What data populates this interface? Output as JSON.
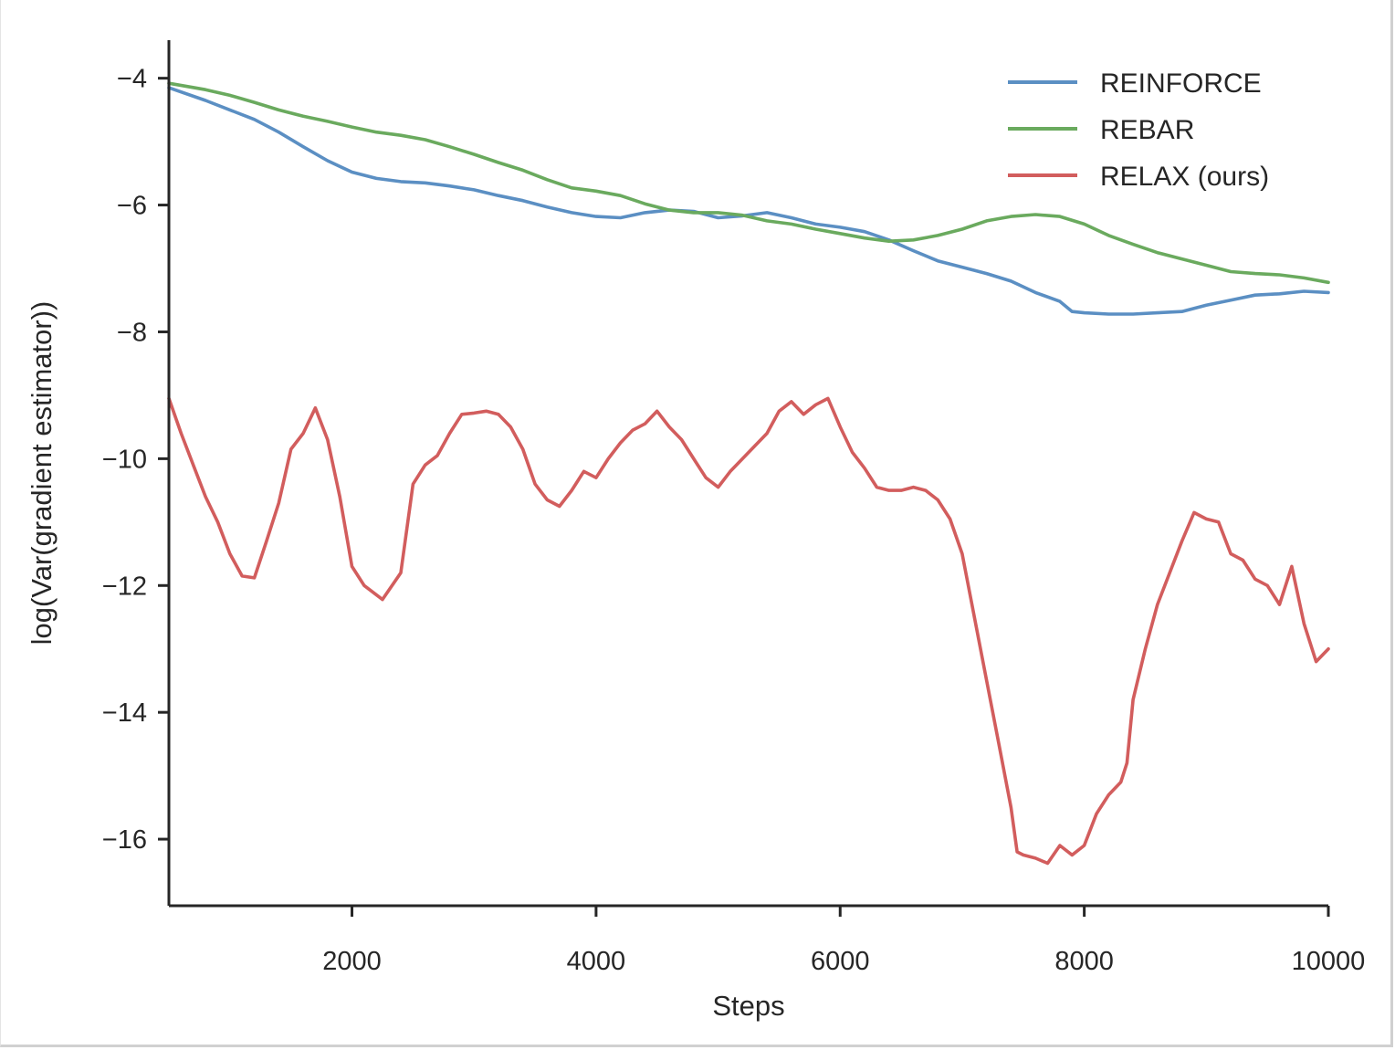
{
  "chart_data": {
    "type": "line",
    "title": "",
    "xlabel": "Steps",
    "ylabel": "log(Var(gradient estimator))",
    "xlim": [
      500,
      10000
    ],
    "ylim": [
      -17.05,
      -3.4
    ],
    "x_ticks": [
      2000,
      4000,
      6000,
      8000,
      10000
    ],
    "y_ticks": [
      -4,
      -6,
      -8,
      -10,
      -12,
      -14,
      -16
    ],
    "x_tick_labels": [
      "2000",
      "4000",
      "6000",
      "8000",
      "10000"
    ],
    "y_tick_labels": [
      "−4",
      "−6",
      "−8",
      "−10",
      "−12",
      "−14",
      "−16"
    ],
    "grid": false,
    "legend_position": "top-right",
    "series": [
      {
        "name": "REINFORCE",
        "color": "#5b8fc3",
        "points": [
          [
            500,
            -4.15
          ],
          [
            800,
            -4.35
          ],
          [
            1000,
            -4.5
          ],
          [
            1200,
            -4.65
          ],
          [
            1400,
            -4.85
          ],
          [
            1600,
            -5.08
          ],
          [
            1800,
            -5.3
          ],
          [
            2000,
            -5.48
          ],
          [
            2200,
            -5.58
          ],
          [
            2400,
            -5.63
          ],
          [
            2600,
            -5.65
          ],
          [
            2800,
            -5.7
          ],
          [
            3000,
            -5.76
          ],
          [
            3200,
            -5.85
          ],
          [
            3400,
            -5.93
          ],
          [
            3600,
            -6.03
          ],
          [
            3800,
            -6.12
          ],
          [
            4000,
            -6.18
          ],
          [
            4200,
            -6.2
          ],
          [
            4400,
            -6.12
          ],
          [
            4600,
            -6.08
          ],
          [
            4800,
            -6.1
          ],
          [
            5000,
            -6.2
          ],
          [
            5200,
            -6.17
          ],
          [
            5400,
            -6.12
          ],
          [
            5600,
            -6.2
          ],
          [
            5800,
            -6.3
          ],
          [
            6000,
            -6.35
          ],
          [
            6200,
            -6.42
          ],
          [
            6400,
            -6.55
          ],
          [
            6600,
            -6.72
          ],
          [
            6800,
            -6.88
          ],
          [
            7000,
            -6.98
          ],
          [
            7200,
            -7.08
          ],
          [
            7400,
            -7.2
          ],
          [
            7600,
            -7.38
          ],
          [
            7800,
            -7.52
          ],
          [
            7900,
            -7.68
          ],
          [
            8000,
            -7.7
          ],
          [
            8200,
            -7.72
          ],
          [
            8400,
            -7.72
          ],
          [
            8600,
            -7.7
          ],
          [
            8800,
            -7.68
          ],
          [
            9000,
            -7.58
          ],
          [
            9200,
            -7.5
          ],
          [
            9400,
            -7.42
          ],
          [
            9600,
            -7.4
          ],
          [
            9800,
            -7.36
          ],
          [
            10000,
            -7.38
          ]
        ]
      },
      {
        "name": "REBAR",
        "color": "#6aaa5e",
        "points": [
          [
            500,
            -4.08
          ],
          [
            800,
            -4.18
          ],
          [
            1000,
            -4.27
          ],
          [
            1200,
            -4.38
          ],
          [
            1400,
            -4.5
          ],
          [
            1600,
            -4.6
          ],
          [
            1800,
            -4.68
          ],
          [
            2000,
            -4.77
          ],
          [
            2200,
            -4.85
          ],
          [
            2400,
            -4.9
          ],
          [
            2600,
            -4.97
          ],
          [
            2800,
            -5.08
          ],
          [
            3000,
            -5.2
          ],
          [
            3200,
            -5.33
          ],
          [
            3400,
            -5.45
          ],
          [
            3600,
            -5.6
          ],
          [
            3800,
            -5.73
          ],
          [
            4000,
            -5.78
          ],
          [
            4200,
            -5.85
          ],
          [
            4400,
            -5.98
          ],
          [
            4600,
            -6.08
          ],
          [
            4800,
            -6.12
          ],
          [
            5000,
            -6.12
          ],
          [
            5200,
            -6.16
          ],
          [
            5400,
            -6.25
          ],
          [
            5600,
            -6.3
          ],
          [
            5800,
            -6.38
          ],
          [
            6000,
            -6.45
          ],
          [
            6200,
            -6.52
          ],
          [
            6400,
            -6.57
          ],
          [
            6600,
            -6.55
          ],
          [
            6800,
            -6.48
          ],
          [
            7000,
            -6.38
          ],
          [
            7200,
            -6.25
          ],
          [
            7400,
            -6.18
          ],
          [
            7600,
            -6.15
          ],
          [
            7800,
            -6.18
          ],
          [
            8000,
            -6.3
          ],
          [
            8200,
            -6.48
          ],
          [
            8400,
            -6.62
          ],
          [
            8600,
            -6.75
          ],
          [
            8800,
            -6.85
          ],
          [
            9000,
            -6.95
          ],
          [
            9200,
            -7.05
          ],
          [
            9400,
            -7.08
          ],
          [
            9600,
            -7.1
          ],
          [
            9800,
            -7.15
          ],
          [
            10000,
            -7.22
          ]
        ]
      },
      {
        "name": "RELAX (ours)",
        "color": "#d25d5d",
        "points": [
          [
            500,
            -9.05
          ],
          [
            600,
            -9.6
          ],
          [
            700,
            -10.1
          ],
          [
            800,
            -10.6
          ],
          [
            900,
            -11.0
          ],
          [
            1000,
            -11.5
          ],
          [
            1100,
            -11.85
          ],
          [
            1200,
            -11.88
          ],
          [
            1300,
            -11.3
          ],
          [
            1400,
            -10.7
          ],
          [
            1500,
            -9.85
          ],
          [
            1600,
            -9.6
          ],
          [
            1700,
            -9.2
          ],
          [
            1800,
            -9.7
          ],
          [
            1900,
            -10.6
          ],
          [
            2000,
            -11.7
          ],
          [
            2100,
            -12.0
          ],
          [
            2250,
            -12.22
          ],
          [
            2400,
            -11.8
          ],
          [
            2500,
            -10.4
          ],
          [
            2600,
            -10.1
          ],
          [
            2700,
            -9.95
          ],
          [
            2800,
            -9.6
          ],
          [
            2900,
            -9.3
          ],
          [
            3000,
            -9.28
          ],
          [
            3100,
            -9.25
          ],
          [
            3200,
            -9.3
          ],
          [
            3300,
            -9.5
          ],
          [
            3400,
            -9.85
          ],
          [
            3500,
            -10.4
          ],
          [
            3600,
            -10.65
          ],
          [
            3700,
            -10.75
          ],
          [
            3800,
            -10.5
          ],
          [
            3900,
            -10.2
          ],
          [
            4000,
            -10.3
          ],
          [
            4100,
            -10.0
          ],
          [
            4200,
            -9.75
          ],
          [
            4300,
            -9.55
          ],
          [
            4400,
            -9.45
          ],
          [
            4500,
            -9.25
          ],
          [
            4600,
            -9.5
          ],
          [
            4700,
            -9.7
          ],
          [
            4800,
            -10.0
          ],
          [
            4900,
            -10.3
          ],
          [
            5000,
            -10.45
          ],
          [
            5100,
            -10.2
          ],
          [
            5200,
            -10.0
          ],
          [
            5300,
            -9.8
          ],
          [
            5400,
            -9.6
          ],
          [
            5500,
            -9.25
          ],
          [
            5600,
            -9.1
          ],
          [
            5700,
            -9.3
          ],
          [
            5800,
            -9.15
          ],
          [
            5900,
            -9.05
          ],
          [
            6000,
            -9.5
          ],
          [
            6100,
            -9.9
          ],
          [
            6200,
            -10.15
          ],
          [
            6300,
            -10.45
          ],
          [
            6400,
            -10.5
          ],
          [
            6500,
            -10.5
          ],
          [
            6600,
            -10.45
          ],
          [
            6700,
            -10.5
          ],
          [
            6800,
            -10.65
          ],
          [
            6900,
            -10.95
          ],
          [
            7000,
            -11.5
          ],
          [
            7100,
            -12.5
          ],
          [
            7200,
            -13.5
          ],
          [
            7300,
            -14.5
          ],
          [
            7400,
            -15.5
          ],
          [
            7450,
            -16.2
          ],
          [
            7500,
            -16.25
          ],
          [
            7600,
            -16.3
          ],
          [
            7700,
            -16.38
          ],
          [
            7800,
            -16.1
          ],
          [
            7900,
            -16.25
          ],
          [
            8000,
            -16.1
          ],
          [
            8100,
            -15.6
          ],
          [
            8200,
            -15.3
          ],
          [
            8300,
            -15.1
          ],
          [
            8350,
            -14.8
          ],
          [
            8400,
            -13.8
          ],
          [
            8500,
            -13.0
          ],
          [
            8600,
            -12.3
          ],
          [
            8700,
            -11.8
          ],
          [
            8800,
            -11.3
          ],
          [
            8900,
            -10.85
          ],
          [
            9000,
            -10.95
          ],
          [
            9100,
            -11.0
          ],
          [
            9200,
            -11.5
          ],
          [
            9300,
            -11.6
          ],
          [
            9400,
            -11.9
          ],
          [
            9500,
            -12.0
          ],
          [
            9600,
            -12.3
          ],
          [
            9700,
            -11.7
          ],
          [
            9800,
            -12.6
          ],
          [
            9900,
            -13.2
          ],
          [
            10000,
            -13.0
          ]
        ]
      }
    ]
  }
}
